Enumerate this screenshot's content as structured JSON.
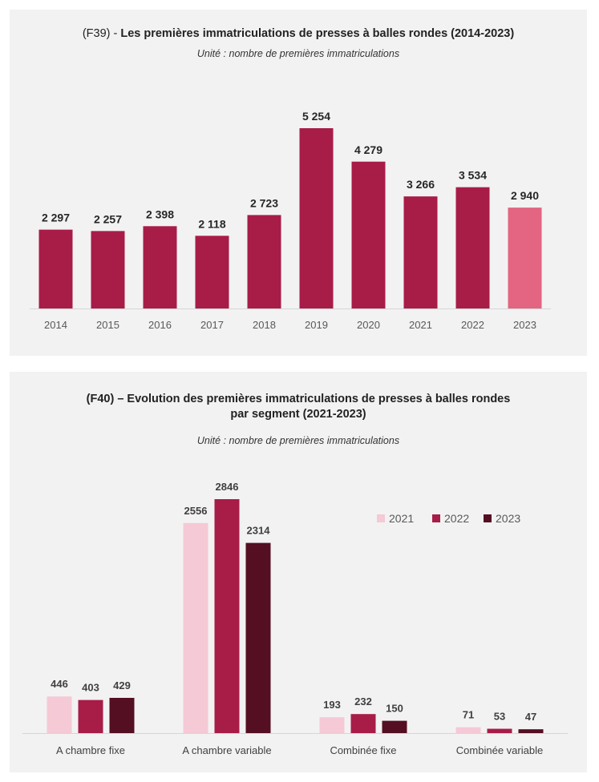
{
  "charts": [
    {
      "title_prefix": "(F39) - ",
      "title_main": "Les premières immatriculations de presses à balles rondes (2014-2023)",
      "subtitle": "Unité : nombre de premières immatriculations"
    },
    {
      "title_line1": "(F40) – Evolution des premières immatriculations de presses à balles rondes",
      "title_line2": "par segment (2021-2023)",
      "subtitle": "Unité : nombre de premières immatriculations"
    }
  ],
  "chart_data": [
    {
      "type": "bar",
      "title": "(F39) - Les premières immatriculations de presses à balles rondes (2014-2023)",
      "subtitle": "Unité : nombre de premières immatriculations",
      "categories": [
        "2014",
        "2015",
        "2016",
        "2017",
        "2018",
        "2019",
        "2020",
        "2021",
        "2022",
        "2023"
      ],
      "values": [
        2297,
        2257,
        2398,
        2118,
        2723,
        5254,
        4279,
        3266,
        3534,
        2940
      ],
      "value_labels": [
        "2 297",
        "2 257",
        "2 398",
        "2 118",
        "2 723",
        "5 254",
        "4 279",
        "3 266",
        "3 534",
        "2 940"
      ],
      "ylim": [
        0,
        5500
      ],
      "grid": false,
      "colors": {
        "default": "#a81c48",
        "highlight": "#e36581",
        "highlight_category": "2023"
      }
    },
    {
      "type": "bar",
      "title": "(F40) – Evolution des premières immatriculations de presses à balles rondes par segment (2021-2023)",
      "subtitle": "Unité : nombre de premières immatriculations",
      "categories": [
        "A chambre fixe",
        "A chambre variable",
        "Combinée fixe",
        "Combinée variable"
      ],
      "series": [
        {
          "name": "2021",
          "color": "#f5c9d5",
          "values": [
            446,
            2556,
            193,
            71
          ]
        },
        {
          "name": "2022",
          "color": "#a81c48",
          "values": [
            403,
            2846,
            232,
            53
          ]
        },
        {
          "name": "2023",
          "color": "#540f22",
          "values": [
            429,
            2314,
            150,
            47
          ]
        }
      ],
      "ylim": [
        0,
        3000
      ],
      "grid": false,
      "legend_position": "top-right"
    }
  ]
}
